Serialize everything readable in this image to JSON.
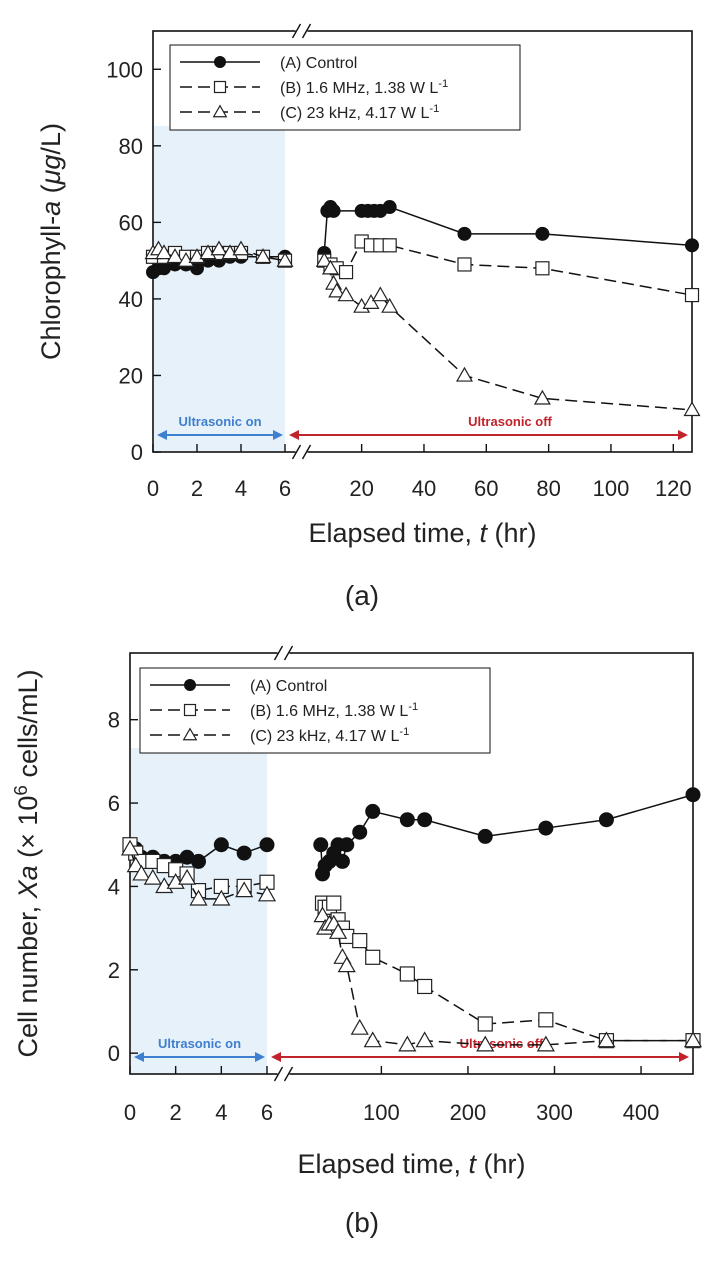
{
  "figure": {
    "panel_labels": [
      "(a)",
      "(b)"
    ]
  },
  "colors": {
    "shade": "#e6f1fa",
    "on_arrow": "#3f7fcf",
    "off_arrow": "#c0232a",
    "series": "#111111"
  },
  "chart_data": [
    {
      "type": "line",
      "panel": "(a)",
      "ylabel_parts": [
        "Chlorophyll-",
        "a",
        " (",
        "μg",
        "/L)"
      ],
      "xlabel_parts": [
        "Elapsed time, ",
        "t",
        " (hr)"
      ],
      "ylim": [
        0,
        110
      ],
      "yticks": [
        0,
        20,
        40,
        60,
        80,
        100
      ],
      "xticks_left": [
        0,
        2,
        4,
        6
      ],
      "xticks_right": [
        20,
        40,
        60,
        80,
        100,
        120
      ],
      "x_break": 6,
      "xlim_left": [
        0,
        6
      ],
      "xlim_right": [
        6,
        126
      ],
      "right_axis_origin": 6,
      "shade_range": [
        0,
        6
      ],
      "annotations": {
        "on": "Ultrasonic on",
        "off": "Ultrasonic off"
      },
      "legend": {
        "placement": "top-left",
        "items": [
          "(A) Control",
          "(B) 1.6 MHz, 1.38 W L",
          "(C) 23 kHz, 4.17 W L"
        ],
        "superscript": "-1"
      },
      "series": [
        {
          "name": "(A) Control",
          "marker": "filled-circle",
          "dash": "solid",
          "x": [
            0,
            0.25,
            0.5,
            1,
            1.5,
            2,
            2.5,
            3,
            3.5,
            4,
            5,
            6,
            8,
            9,
            10,
            11,
            20,
            22,
            24,
            26,
            29,
            53,
            78,
            126
          ],
          "y": [
            47,
            48,
            48,
            49,
            49,
            48,
            50,
            50,
            51,
            51,
            51,
            51,
            52,
            63,
            64,
            63,
            63,
            63,
            63,
            63,
            64,
            57,
            57,
            54
          ]
        },
        {
          "name": "(B) 1.6 MHz, 1.38 W L-1",
          "marker": "open-square",
          "dash": "dashed",
          "x": [
            0,
            0.5,
            1,
            1.5,
            2,
            2.5,
            3,
            3.5,
            4,
            5,
            6,
            8,
            10,
            12,
            15,
            20,
            23,
            26,
            29,
            53,
            78,
            126
          ],
          "y": [
            51,
            51,
            52,
            51,
            51,
            52,
            52,
            52,
            52,
            51,
            50,
            50,
            49,
            48,
            47,
            55,
            54,
            54,
            54,
            49,
            48,
            41
          ]
        },
        {
          "name": "(C) 23 kHz, 4.17 W L-1",
          "marker": "open-triangle",
          "dash": "dashed",
          "x": [
            0,
            0.25,
            0.5,
            1,
            1.5,
            2,
            2.5,
            3,
            3.5,
            4,
            5,
            6,
            8,
            10,
            11,
            12,
            15,
            20,
            23,
            26,
            29,
            53,
            78,
            126
          ],
          "y": [
            52,
            53,
            52,
            51,
            50,
            51,
            52,
            53,
            52,
            53,
            51,
            50,
            50,
            48,
            44,
            42,
            41,
            38,
            39,
            41,
            38,
            20,
            14,
            11
          ]
        }
      ]
    },
    {
      "type": "line",
      "panel": "(b)",
      "ylabel_parts": [
        "Cell number, ",
        "Xa",
        " (× 10",
        "6",
        " cells/mL)"
      ],
      "xlabel_parts": [
        "Elapsed time, ",
        "t",
        " (hr)"
      ],
      "ylim": [
        -0.5,
        9.6
      ],
      "yticks": [
        0,
        2,
        4,
        6,
        8
      ],
      "xticks_left": [
        0,
        2,
        4,
        6
      ],
      "xticks_right": [
        100,
        200,
        300,
        400
      ],
      "x_break": 6,
      "xlim_left": [
        0,
        6
      ],
      "xlim_right": [
        6,
        460
      ],
      "right_axis_origin": 6,
      "shade_range": [
        0,
        6
      ],
      "annotations": {
        "on": "Ultrasonic on",
        "off": "Ultrasonic off"
      },
      "legend": {
        "placement": "top-left",
        "items": [
          "(A) Control",
          "(B) 1.6 MHz, 1.38 W L",
          "(C) 23 kHz, 4.17 W L"
        ],
        "superscript": "-1"
      },
      "series": [
        {
          "name": "(A) Control",
          "marker": "filled-circle",
          "dash": "solid",
          "x": [
            0,
            0.25,
            0.5,
            1,
            1.5,
            2,
            2.5,
            3,
            4,
            5,
            6,
            30,
            32,
            35,
            40,
            45,
            50,
            55,
            60,
            75,
            90,
            130,
            150,
            220,
            290,
            360,
            460
          ],
          "y": [
            5.0,
            4.9,
            4.7,
            4.7,
            4.6,
            4.6,
            4.7,
            4.6,
            5.0,
            4.8,
            5.0,
            5.0,
            4.3,
            4.5,
            4.6,
            4.8,
            5.0,
            4.6,
            5.0,
            5.3,
            5.8,
            5.6,
            5.6,
            5.2,
            5.4,
            5.6,
            6.2
          ]
        },
        {
          "name": "(B) 1.6 MHz, 1.38 W L-1",
          "marker": "open-square",
          "dash": "dashed",
          "x": [
            0,
            0.25,
            0.5,
            1,
            1.5,
            2,
            2.5,
            3,
            4,
            5,
            6,
            32,
            35,
            40,
            45,
            50,
            55,
            60,
            75,
            90,
            130,
            150,
            220,
            290,
            360,
            460
          ],
          "y": [
            5.0,
            4.8,
            4.6,
            4.6,
            4.5,
            4.4,
            4.3,
            3.9,
            4.0,
            4.0,
            4.1,
            3.6,
            3.5,
            3.5,
            3.6,
            3.2,
            3.0,
            2.8,
            2.7,
            2.3,
            1.9,
            1.6,
            0.7,
            0.8,
            0.3,
            0.3
          ]
        },
        {
          "name": "(C) 23 kHz, 4.17 W L-1",
          "marker": "open-triangle",
          "dash": "dashed",
          "x": [
            0,
            0.25,
            0.5,
            1,
            1.5,
            2,
            2.5,
            3,
            4,
            5,
            6,
            32,
            35,
            40,
            45,
            50,
            55,
            60,
            75,
            90,
            130,
            150,
            220,
            290,
            360,
            460
          ],
          "y": [
            4.9,
            4.5,
            4.3,
            4.2,
            4.0,
            4.1,
            4.2,
            3.7,
            3.7,
            3.9,
            3.8,
            3.3,
            3.0,
            3.1,
            3.1,
            2.9,
            2.3,
            2.1,
            0.6,
            0.3,
            0.2,
            0.3,
            0.2,
            0.2,
            0.3,
            0.3
          ]
        }
      ]
    }
  ]
}
